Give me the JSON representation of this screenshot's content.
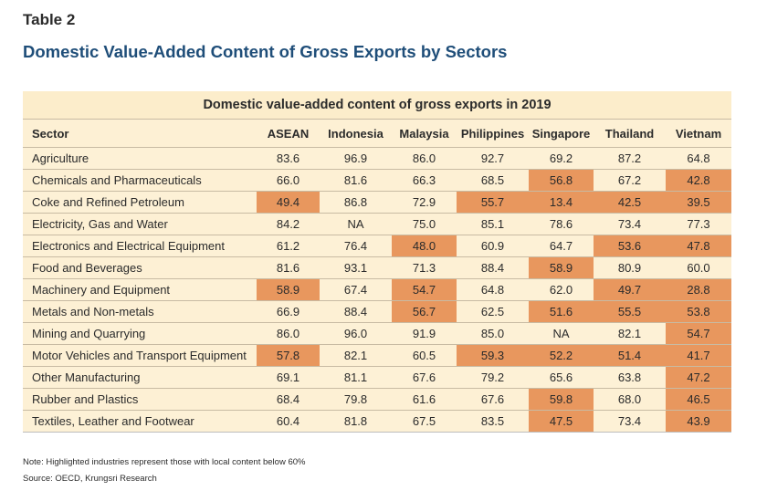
{
  "label": "Table 2",
  "title": "Domestic Value-Added Content of Gross Exports by Sectors",
  "table": {
    "caption": "Domestic value-added content of gross exports in 2019",
    "columns": [
      "Sector",
      "ASEAN",
      "Indonesia",
      "Malaysia",
      "Philippines",
      "Singapore",
      "Thailand",
      "Vietnam"
    ],
    "highlight_color": "#e8975e",
    "highlight_threshold": 60,
    "rows": [
      {
        "sector": "Agriculture",
        "values": [
          "83.6",
          "96.9",
          "86.0",
          "92.7",
          "69.2",
          "87.2",
          "64.8"
        ],
        "highlight": [
          false,
          false,
          false,
          false,
          false,
          false,
          false
        ]
      },
      {
        "sector": "Chemicals and Pharmaceuticals",
        "values": [
          "66.0",
          "81.6",
          "66.3",
          "68.5",
          "56.8",
          "67.2",
          "42.8"
        ],
        "highlight": [
          false,
          false,
          false,
          false,
          true,
          false,
          true
        ]
      },
      {
        "sector": "Coke and Refined Petroleum",
        "values": [
          "49.4",
          "86.8",
          "72.9",
          "55.7",
          "13.4",
          "42.5",
          "39.5"
        ],
        "highlight": [
          true,
          false,
          false,
          true,
          true,
          true,
          true
        ]
      },
      {
        "sector": "Electricity, Gas and Water",
        "values": [
          "84.2",
          "NA",
          "75.0",
          "85.1",
          "78.6",
          "73.4",
          "77.3"
        ],
        "highlight": [
          false,
          false,
          false,
          false,
          false,
          false,
          false
        ]
      },
      {
        "sector": "Electronics and Electrical Equipment",
        "values": [
          "61.2",
          "76.4",
          "48.0",
          "60.9",
          "64.7",
          "53.6",
          "47.8"
        ],
        "highlight": [
          false,
          false,
          true,
          false,
          false,
          true,
          true
        ]
      },
      {
        "sector": "Food and Beverages",
        "values": [
          "81.6",
          "93.1",
          "71.3",
          "88.4",
          "58.9",
          "80.9",
          "60.0"
        ],
        "highlight": [
          false,
          false,
          false,
          false,
          true,
          false,
          false
        ]
      },
      {
        "sector": "Machinery and Equipment",
        "values": [
          "58.9",
          "67.4",
          "54.7",
          "64.8",
          "62.0",
          "49.7",
          "28.8"
        ],
        "highlight": [
          true,
          false,
          true,
          false,
          false,
          true,
          true
        ]
      },
      {
        "sector": "Metals and Non-metals",
        "values": [
          "66.9",
          "88.4",
          "56.7",
          "62.5",
          "51.6",
          "55.5",
          "53.8"
        ],
        "highlight": [
          false,
          false,
          true,
          false,
          true,
          true,
          true
        ]
      },
      {
        "sector": "Mining and Quarrying",
        "values": [
          "86.0",
          "96.0",
          "91.9",
          "85.0",
          "NA",
          "82.1",
          "54.7"
        ],
        "highlight": [
          false,
          false,
          false,
          false,
          false,
          false,
          true
        ]
      },
      {
        "sector": "Motor Vehicles and Transport Equipment",
        "values": [
          "57.8",
          "82.1",
          "60.5",
          "59.3",
          "52.2",
          "51.4",
          "41.7"
        ],
        "highlight": [
          true,
          false,
          false,
          true,
          true,
          true,
          true
        ]
      },
      {
        "sector": "Other Manufacturing",
        "values": [
          "69.1",
          "81.1",
          "67.6",
          "79.2",
          "65.6",
          "63.8",
          "47.2"
        ],
        "highlight": [
          false,
          false,
          false,
          false,
          false,
          false,
          true
        ]
      },
      {
        "sector": "Rubber and Plastics",
        "values": [
          "68.4",
          "79.8",
          "61.6",
          "67.6",
          "59.8",
          "68.0",
          "46.5"
        ],
        "highlight": [
          false,
          false,
          false,
          false,
          true,
          false,
          true
        ]
      },
      {
        "sector": "Textiles, Leather and Footwear",
        "values": [
          "60.4",
          "81.8",
          "67.5",
          "83.5",
          "47.5",
          "73.4",
          "43.9"
        ],
        "highlight": [
          false,
          false,
          false,
          false,
          true,
          false,
          true
        ]
      }
    ]
  },
  "note": "Note: Highlighted industries represent those with local content below 60%",
  "source": "Source: OECD, Krungsri Research"
}
